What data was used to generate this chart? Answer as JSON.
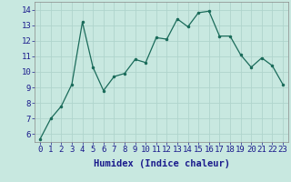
{
  "x": [
    0,
    1,
    2,
    3,
    4,
    5,
    6,
    7,
    8,
    9,
    10,
    11,
    12,
    13,
    14,
    15,
    16,
    17,
    18,
    19,
    20,
    21,
    22,
    23
  ],
  "y": [
    5.7,
    7.0,
    7.8,
    9.2,
    13.2,
    10.3,
    8.8,
    9.7,
    9.9,
    10.8,
    10.6,
    12.2,
    12.1,
    13.4,
    12.9,
    13.8,
    13.9,
    12.3,
    12.3,
    11.1,
    10.3,
    10.9,
    10.4,
    9.2
  ],
  "line_color": "#1a6b5a",
  "marker_color": "#1a6b5a",
  "bg_color": "#c8e8e0",
  "grid_color": "#afd4cc",
  "xlabel": "Humidex (Indice chaleur)",
  "xlabel_color": "#1a1a8c",
  "xlabel_fontsize": 7.5,
  "tick_label_color": "#1a1a8c",
  "tick_fontsize": 6.5,
  "ylim": [
    5.5,
    14.5
  ],
  "yticks": [
    6,
    7,
    8,
    9,
    10,
    11,
    12,
    13,
    14
  ],
  "xlim": [
    -0.5,
    23.5
  ],
  "xticks": [
    0,
    1,
    2,
    3,
    4,
    5,
    6,
    7,
    8,
    9,
    10,
    11,
    12,
    13,
    14,
    15,
    16,
    17,
    18,
    19,
    20,
    21,
    22,
    23
  ]
}
